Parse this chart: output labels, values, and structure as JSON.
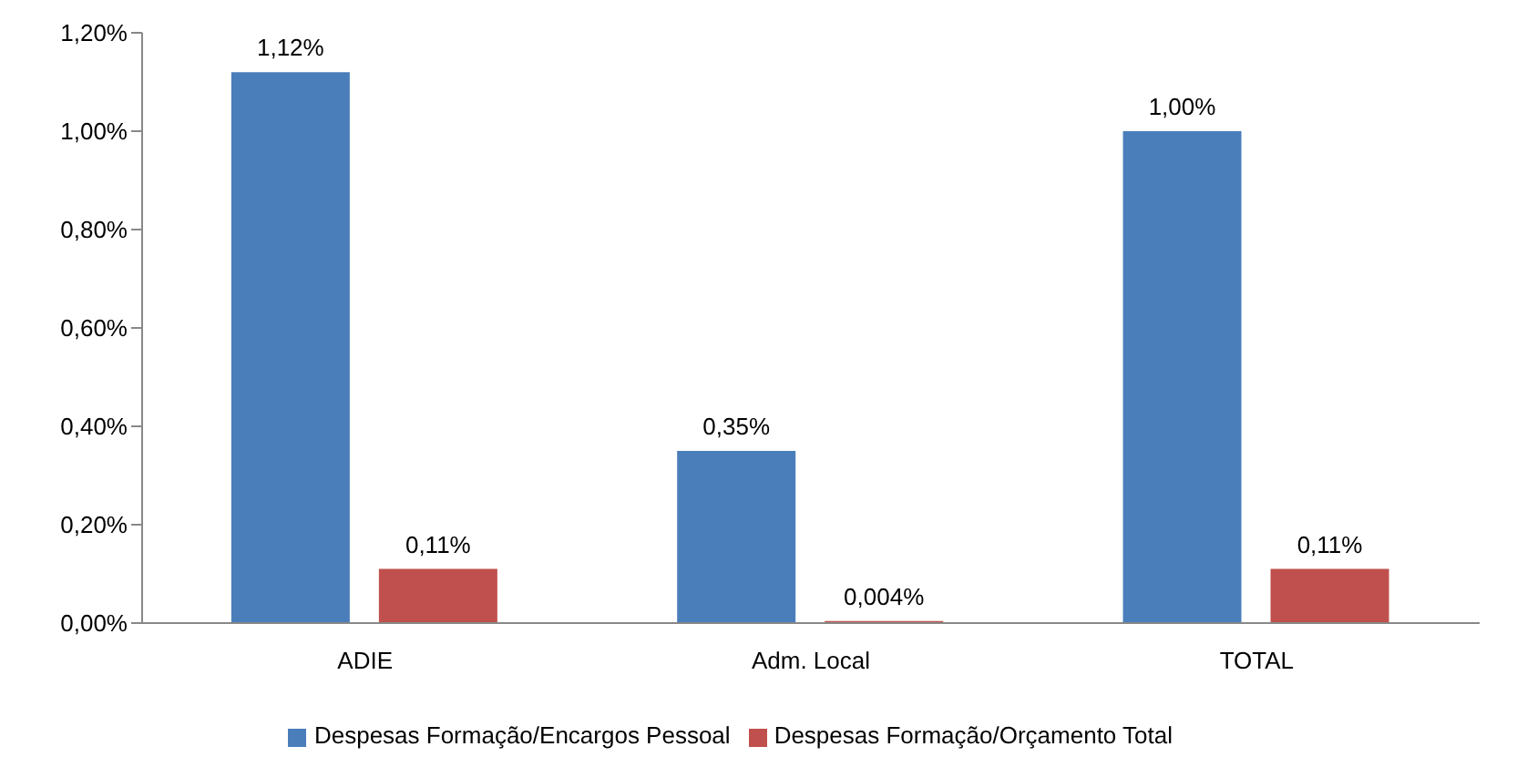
{
  "chart_data": {
    "type": "bar",
    "categories": [
      "ADIE",
      "Adm. Local",
      "TOTAL"
    ],
    "series": [
      {
        "name": "Despesas Formação/Encargos Pessoal",
        "color": "#4a7ebb",
        "values": [
          1.12,
          0.35,
          1.0
        ],
        "value_labels": [
          "1,12%",
          "0,35%",
          "1,00%"
        ]
      },
      {
        "name": "Despesas Formação/Orçamento Total",
        "color": "#c0504d",
        "values": [
          0.11,
          0.004,
          0.11
        ],
        "value_labels": [
          "0,11%",
          "0,004%",
          "0,11%"
        ]
      }
    ],
    "ylim": [
      0,
      1.2
    ],
    "yticks": [
      {
        "value": 0,
        "label": "0,00%"
      },
      {
        "value": 0.2,
        "label": "0,20%"
      },
      {
        "value": 0.4,
        "label": "0,40%"
      },
      {
        "value": 0.6,
        "label": "0,60%"
      },
      {
        "value": 0.8,
        "label": "0,80%"
      },
      {
        "value": 1.0,
        "label": "1,00%"
      },
      {
        "value": 1.2,
        "label": "1,20%"
      }
    ],
    "legend": "bottom"
  }
}
